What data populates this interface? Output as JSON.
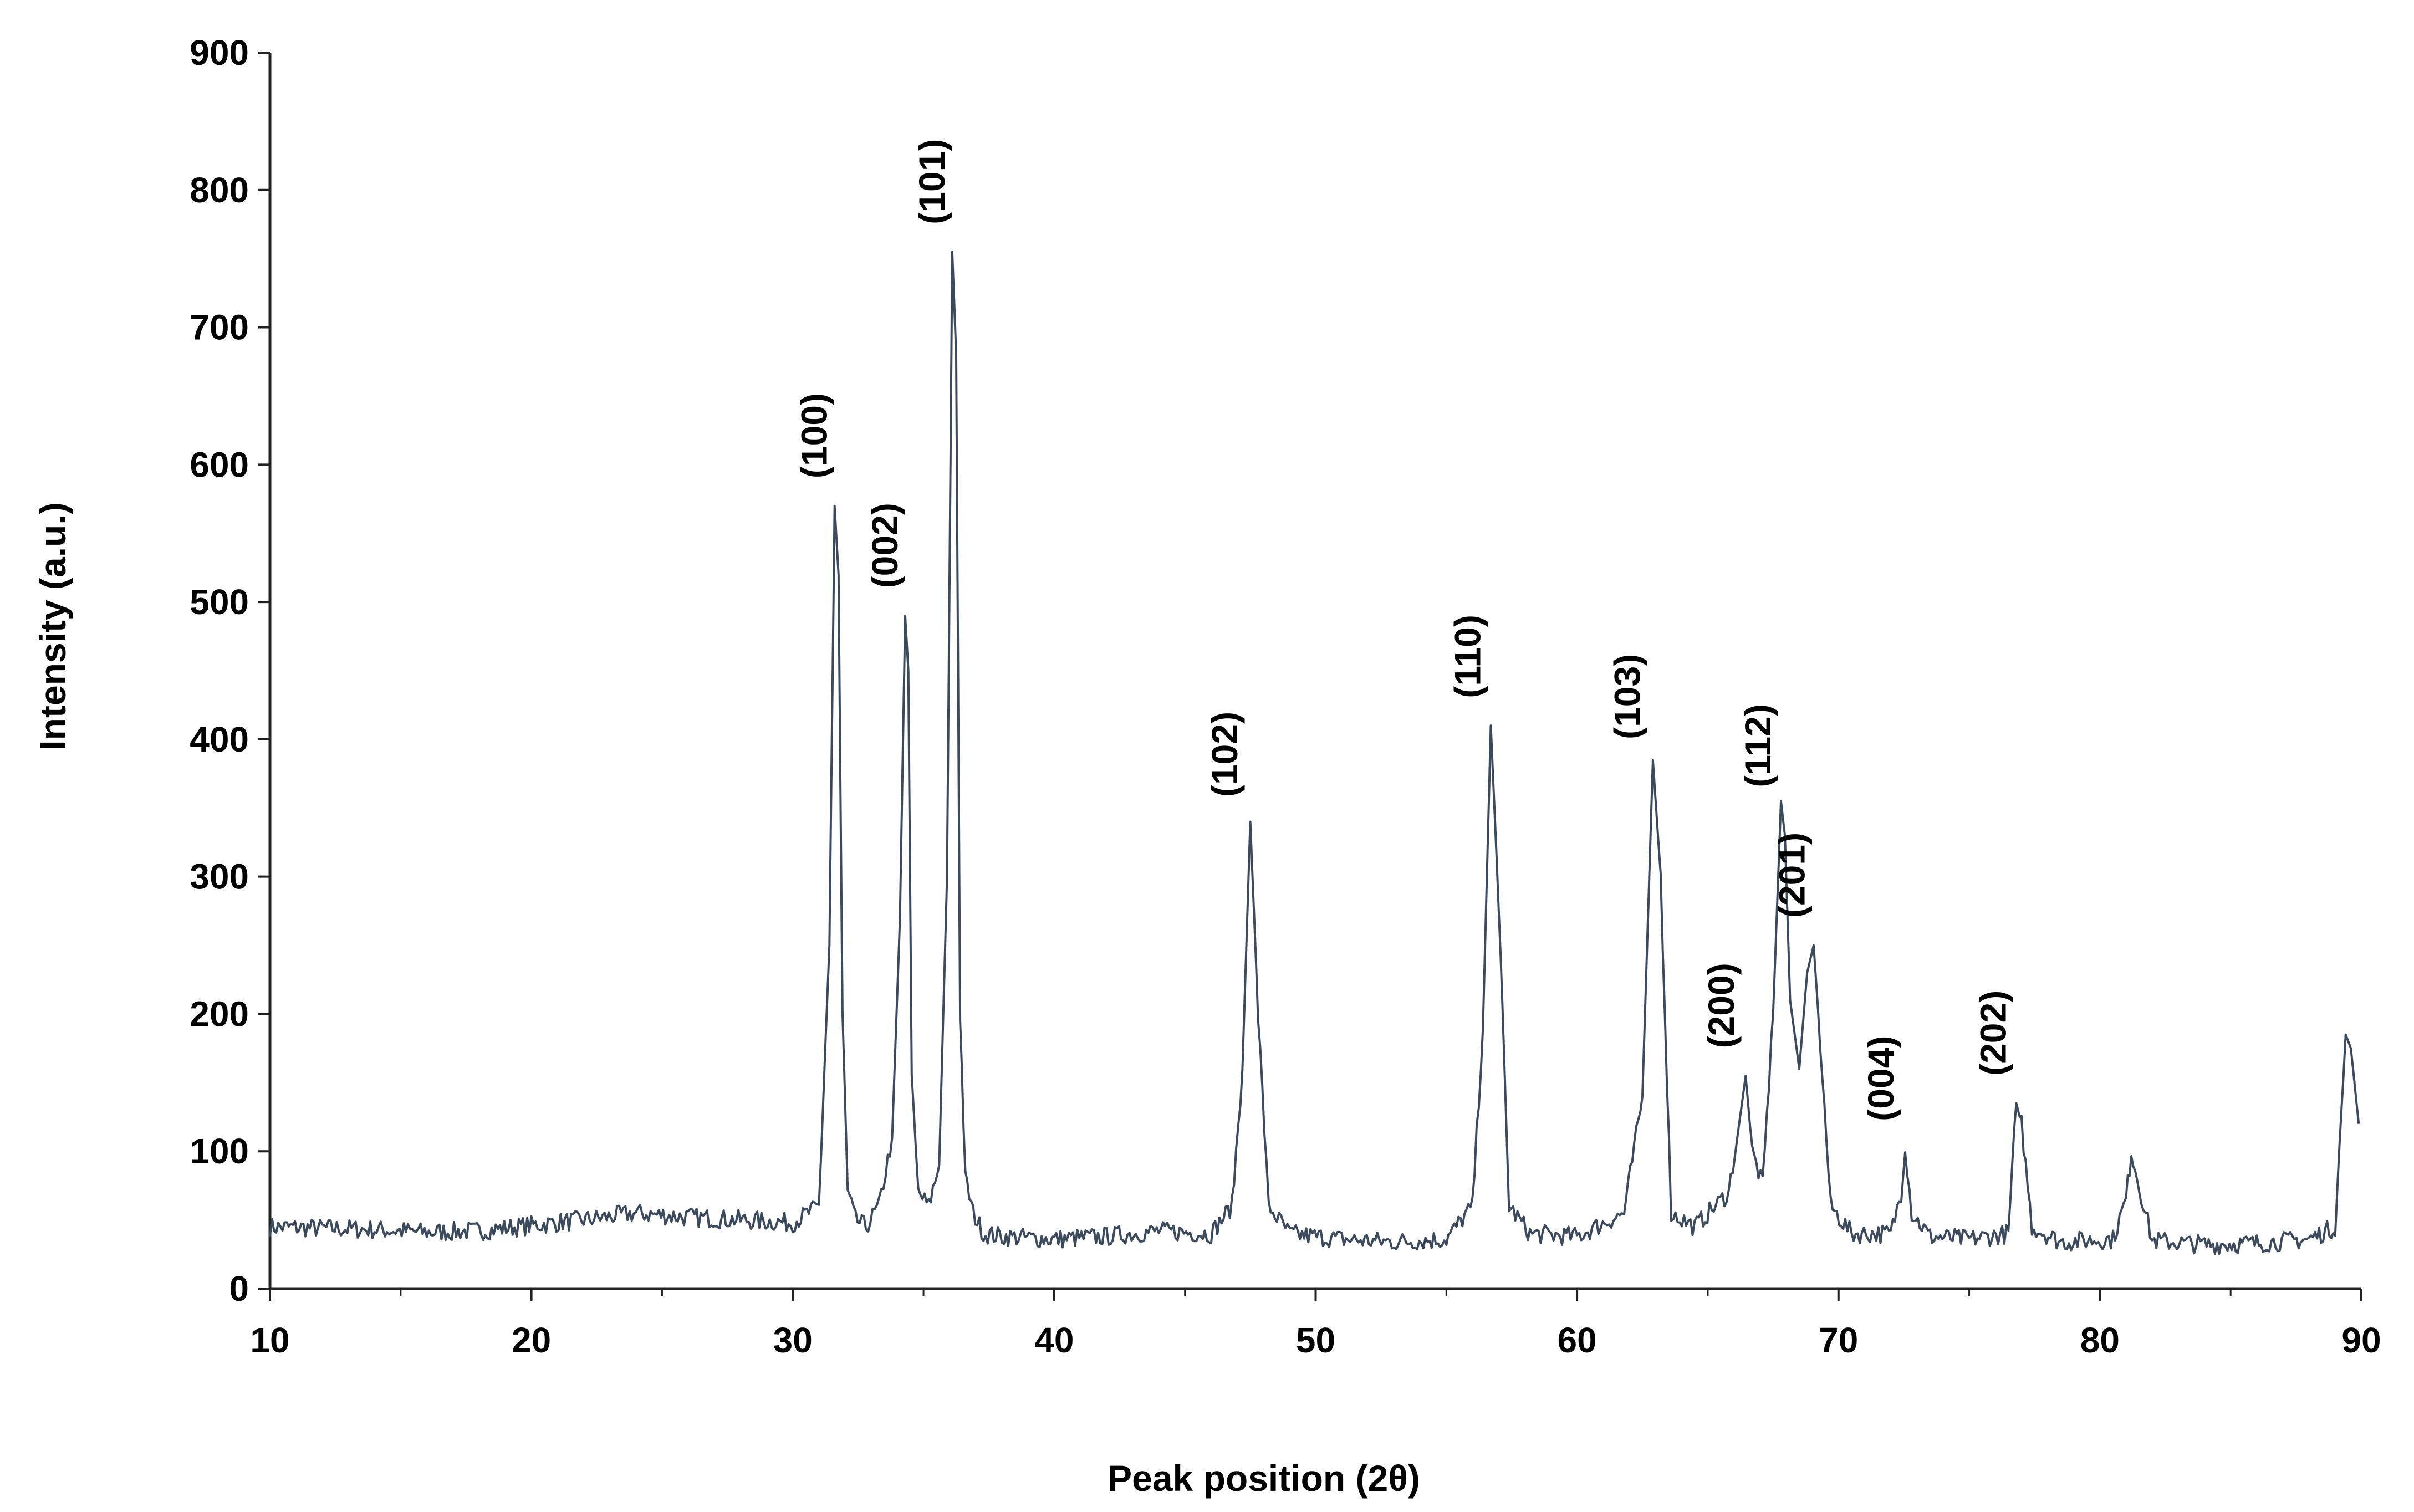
{
  "chart_data": {
    "type": "line",
    "title": "",
    "xlabel": "Peak position (2θ)",
    "ylabel": "Intensity (a.u.)",
    "xlim": [
      10,
      90
    ],
    "ylim": [
      0,
      900
    ],
    "xticks": [
      10,
      20,
      30,
      40,
      50,
      60,
      70,
      80,
      90
    ],
    "yticks": [
      0,
      100,
      200,
      300,
      400,
      500,
      600,
      700,
      800,
      900
    ],
    "grid": false,
    "line_color": "#3b4a5c",
    "series": [
      {
        "x": [
          10.0,
          12.0,
          14.0,
          16.0,
          18.0,
          20.0,
          22.0,
          24.0,
          26.0,
          28.0,
          30.0,
          31.0,
          31.4,
          31.6,
          31.75,
          31.9,
          32.1,
          32.4,
          32.8,
          33.3,
          33.8,
          34.1,
          34.3,
          34.42,
          34.55,
          34.8,
          35.2,
          35.6,
          35.9,
          36.1,
          36.25,
          36.4,
          36.6,
          36.9,
          37.3,
          38.0,
          40.0,
          42.0,
          44.0,
          46.0,
          46.8,
          47.2,
          47.5,
          47.8,
          48.2,
          49.0,
          51.0,
          53.0,
          55.0,
          56.0,
          56.4,
          56.7,
          57.0,
          57.4,
          58.2,
          60.0,
          61.8,
          62.5,
          62.9,
          63.2,
          63.6,
          64.5,
          65.8,
          66.2,
          66.45,
          66.7,
          67.1,
          67.5,
          67.8,
          67.95,
          68.15,
          68.5,
          68.8,
          69.05,
          69.3,
          69.7,
          70.5,
          72.0,
          72.4,
          72.55,
          72.8,
          73.5,
          75.0,
          76.5,
          76.8,
          77.0,
          77.4,
          78.5,
          80.5,
          81.0,
          81.2,
          81.5,
          82.0,
          84.0,
          86.0,
          88.0,
          89.0,
          89.4,
          89.6,
          89.9
        ],
        "y": [
          45,
          44,
          43,
          41,
          42,
          46,
          50,
          55,
          52,
          50,
          48,
          60,
          250,
          570,
          520,
          200,
          70,
          50,
          45,
          60,
          110,
          270,
          490,
          450,
          150,
          70,
          60,
          90,
          300,
          755,
          680,
          200,
          80,
          55,
          40,
          38,
          36,
          38,
          42,
          40,
          60,
          160,
          340,
          200,
          60,
          40,
          36,
          34,
          36,
          60,
          190,
          410,
          280,
          60,
          40,
          38,
          55,
          140,
          385,
          300,
          55,
          45,
          70,
          120,
          155,
          100,
          75,
          200,
          355,
          330,
          210,
          160,
          230,
          250,
          180,
          60,
          40,
          40,
          70,
          105,
          55,
          38,
          36,
          40,
          135,
          120,
          45,
          34,
          36,
          65,
          100,
          75,
          35,
          32,
          33,
          36,
          45,
          185,
          175,
          120
        ]
      }
    ],
    "annotations": [
      "(100)",
      "(002)",
      "(101)",
      "(102)",
      "(110)",
      "(103)",
      "(200)",
      "(112)",
      "(201)",
      "(004)",
      "(202)"
    ]
  }
}
